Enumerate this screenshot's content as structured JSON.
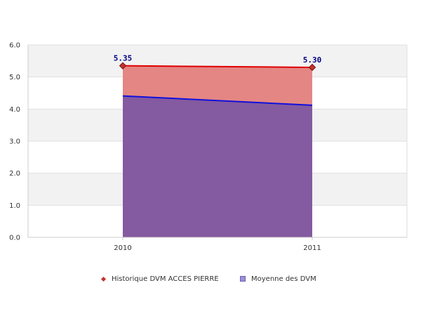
{
  "chart_data": {
    "type": "area",
    "categories": [
      "2010",
      "2011"
    ],
    "ylim": [
      0,
      6
    ],
    "yticks": [
      "0.0",
      "1.0",
      "2.0",
      "3.0",
      "4.0",
      "5.0",
      "6.0"
    ],
    "grid": true,
    "series": [
      {
        "name": "Historique DVM ACCES PIERRE",
        "values": [
          5.35,
          5.3
        ],
        "data_labels": [
          "5.35",
          "5.30"
        ],
        "line_color": "#e00000",
        "fill_color": "#e48684",
        "marker_color": "#c0342e"
      },
      {
        "name": "Moyenne des DVM",
        "values": [
          4.41,
          4.12
        ],
        "line_color": "#1010dd",
        "fill_color": "#845aa0",
        "legend_color": "#9a90d8"
      }
    ],
    "legend_position": "bottom"
  }
}
